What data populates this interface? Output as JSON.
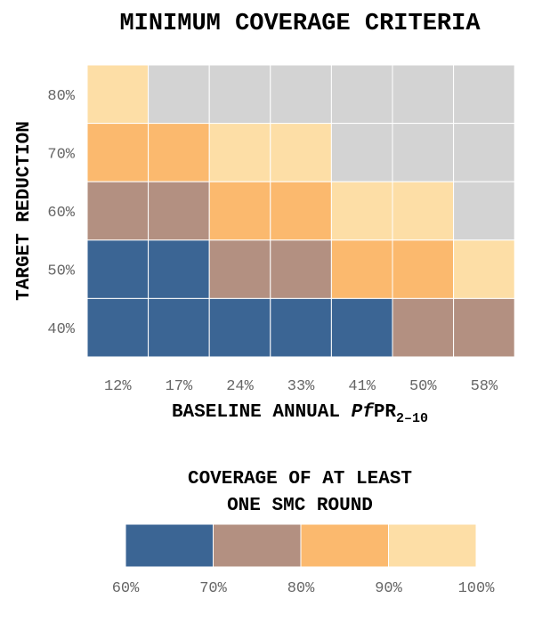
{
  "chart_data": {
    "type": "heatmap",
    "title": "MINIMUM COVERAGE CRITERIA",
    "xlabel_prefix": "BASELINE ANNUAL ",
    "xlabel_italic": "Pf",
    "xlabel_main": "PR",
    "xlabel_sub": "2–10",
    "ylabel": "TARGET REDUCTION",
    "x_categories": [
      "12%",
      "17%",
      "24%",
      "33%",
      "41%",
      "50%",
      "58%"
    ],
    "y_categories": [
      "80%",
      "70%",
      "60%",
      "50%",
      "40%"
    ],
    "values": [
      [
        100,
        null,
        null,
        null,
        null,
        null,
        null
      ],
      [
        90,
        90,
        100,
        100,
        null,
        null,
        null
      ],
      [
        80,
        80,
        90,
        90,
        100,
        100,
        null
      ],
      [
        70,
        70,
        80,
        80,
        90,
        90,
        100
      ],
      [
        70,
        70,
        70,
        70,
        70,
        80,
        80
      ]
    ],
    "na_color": "#d3d3d3",
    "legend": {
      "title_line1": "COVERAGE OF AT LEAST",
      "title_line2": "ONE SMC ROUND",
      "bins": [
        {
          "from": 60,
          "to": 70,
          "color": "#3b6594"
        },
        {
          "from": 70,
          "to": 80,
          "color": "#b39081"
        },
        {
          "from": 80,
          "to": 90,
          "color": "#fbb96e"
        },
        {
          "from": 90,
          "to": 100,
          "color": "#fddea6"
        }
      ],
      "tick_labels": [
        "60%",
        "70%",
        "80%",
        "90%",
        "100%"
      ]
    }
  }
}
